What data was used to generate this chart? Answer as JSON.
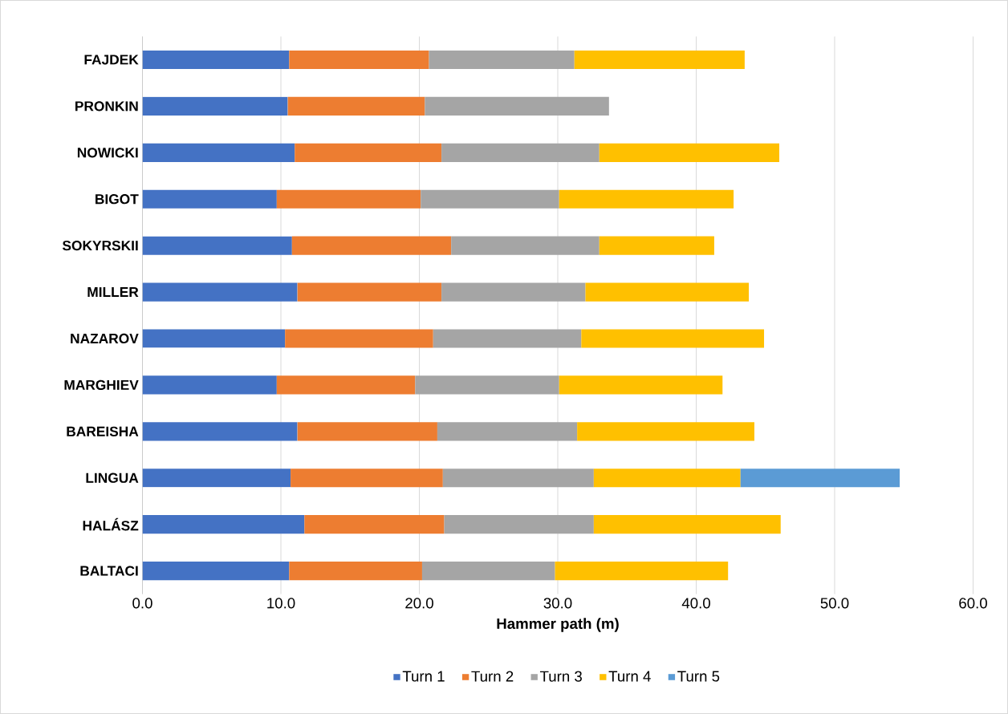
{
  "chart_data": {
    "type": "bar",
    "orientation": "horizontal",
    "stacked": true,
    "xlabel": "Hammer path (m)",
    "categories": [
      "FAJDEK",
      "PRONKIN",
      "NOWICKI",
      "BIGOT",
      "SOKYRSKII",
      "MILLER",
      "NAZAROV",
      "MARGHIEV",
      "BAREISHA",
      "LINGUA",
      "HALÁSZ",
      "BALTACI"
    ],
    "series": [
      {
        "name": "Turn 1",
        "color": "#4472c4",
        "values": [
          10.6,
          10.5,
          11.0,
          9.7,
          10.8,
          11.2,
          10.3,
          9.7,
          11.2,
          10.7,
          11.7,
          10.6
        ]
      },
      {
        "name": "Turn 2",
        "color": "#ed7d31",
        "values": [
          10.1,
          9.9,
          10.6,
          10.4,
          11.5,
          10.4,
          10.7,
          10.0,
          10.1,
          11.0,
          10.1,
          9.6
        ]
      },
      {
        "name": "Turn 3",
        "color": "#a5a5a5",
        "values": [
          10.5,
          13.3,
          11.4,
          10.0,
          10.7,
          10.4,
          10.7,
          10.4,
          10.1,
          10.9,
          10.8,
          9.6
        ]
      },
      {
        "name": "Turn 4",
        "color": "#ffc000",
        "values": [
          12.3,
          null,
          13.0,
          12.6,
          8.3,
          11.8,
          13.2,
          11.8,
          12.8,
          10.6,
          13.5,
          12.5
        ]
      },
      {
        "name": "Turn 5",
        "color": "#5b9bd5",
        "values": [
          null,
          null,
          null,
          null,
          null,
          null,
          null,
          null,
          null,
          11.5,
          null,
          null
        ]
      }
    ],
    "xlim": [
      0,
      60
    ],
    "xticks": [
      {
        "value": 0,
        "label": "0.0"
      },
      {
        "value": 10,
        "label": "10.0"
      },
      {
        "value": 20,
        "label": "20.0"
      },
      {
        "value": 30,
        "label": "30.0"
      },
      {
        "value": 40,
        "label": "40.0"
      },
      {
        "value": 50,
        "label": "50.0"
      },
      {
        "value": 60,
        "label": "60.0"
      }
    ],
    "grid": "x",
    "legend": "bottom"
  }
}
